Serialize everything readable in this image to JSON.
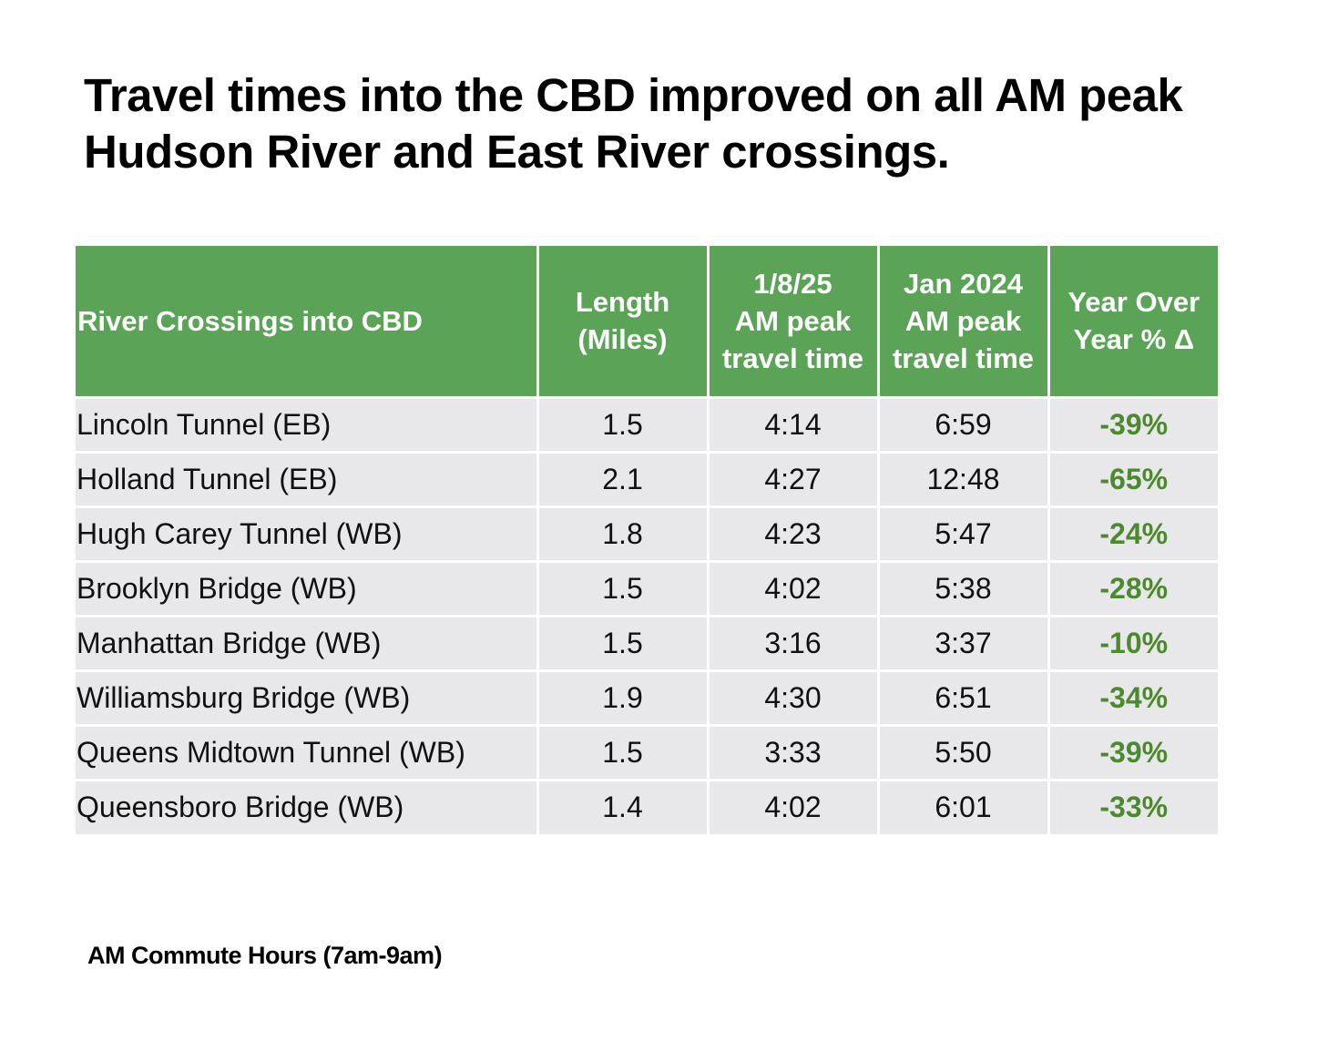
{
  "title": "Travel times into the CBD improved on all AM peak Hudson River and East River crossings.",
  "table": {
    "headers": [
      "River Crossings into CBD",
      "Length\n(Miles)",
      "1/8/25\nAM peak\ntravel time",
      "Jan 2024\nAM peak\ntravel time",
      "Year Over\nYear % Δ"
    ],
    "rows": [
      [
        "Lincoln Tunnel (EB)",
        "1.5",
        "4:14",
        "6:59",
        "-39%"
      ],
      [
        "Holland Tunnel (EB)",
        "2.1",
        "4:27",
        "12:48",
        "-65%"
      ],
      [
        "Hugh Carey Tunnel (WB)",
        "1.8",
        "4:23",
        "5:47",
        "-24%"
      ],
      [
        "Brooklyn Bridge (WB)",
        "1.5",
        "4:02",
        "5:38",
        "-28%"
      ],
      [
        "Manhattan Bridge (WB)",
        "1.5",
        "3:16",
        "3:37",
        "-10%"
      ],
      [
        "Williamsburg Bridge (WB)",
        "1.9",
        "4:30",
        "6:51",
        "-34%"
      ],
      [
        "Queens Midtown Tunnel (WB)",
        "1.5",
        "3:33",
        "5:50",
        "-39%"
      ],
      [
        "Queensboro Bridge (WB)",
        "1.4",
        "4:02",
        "6:01",
        "-33%"
      ]
    ]
  },
  "footnote": "AM Commute Hours (7am-9am)",
  "colors": {
    "header_bg": "#5ba356",
    "row_bg": "#e8e8ea",
    "change_text": "#4b8a2d"
  }
}
